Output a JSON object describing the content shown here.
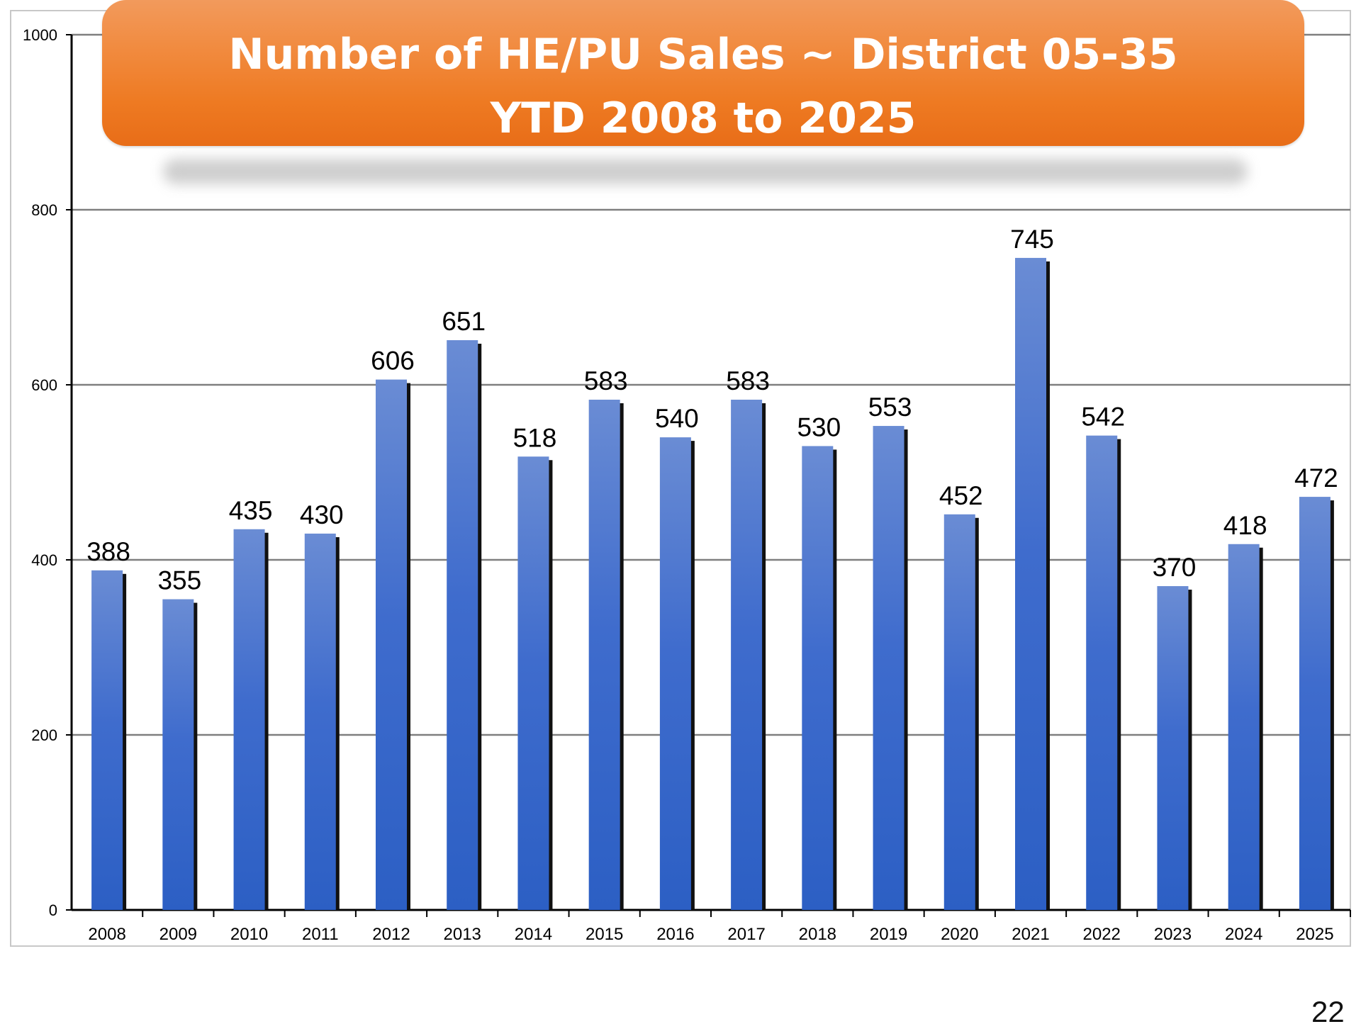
{
  "page": {
    "number": "22"
  },
  "chart_data": {
    "type": "bar",
    "title": "Number of HE/PU Sales ~ District 05-35",
    "subtitle": "YTD 2008 to 2025",
    "xlabel": "",
    "ylabel": "",
    "ylim": [
      0,
      1000
    ],
    "yticks": [
      "0",
      "200",
      "400",
      "600",
      "800",
      "1000"
    ],
    "ytick_values": [
      0,
      200,
      400,
      600,
      800,
      1000
    ],
    "grid": true,
    "categories": [
      "2008",
      "2009",
      "2010",
      "2011",
      "2012",
      "2013",
      "2014",
      "2015",
      "2016",
      "2017",
      "2018",
      "2019",
      "2020",
      "2021",
      "2022",
      "2023",
      "2024",
      "2025"
    ],
    "values": [
      388,
      355,
      435,
      430,
      606,
      651,
      518,
      583,
      540,
      583,
      530,
      553,
      452,
      745,
      542,
      370,
      418,
      472
    ],
    "data_labels": [
      "388",
      "355",
      "435",
      "430",
      "606",
      "651",
      "518",
      "583",
      "540",
      "583",
      "530",
      "553",
      "452",
      "745",
      "542",
      "370",
      "418",
      "472"
    ],
    "colors": {
      "bar_top": "#6a8cd4",
      "bar_bottom": "#2c5fc4",
      "bar_shadow": "#111111",
      "gridline": "#7f7f7f",
      "banner": "#ee7a22",
      "banner_text": "#ffffff"
    }
  }
}
